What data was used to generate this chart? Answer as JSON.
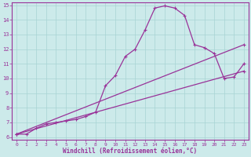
{
  "xlabel": "Windchill (Refroidissement éolien,°C)",
  "xlim": [
    -0.5,
    23.5
  ],
  "ylim": [
    5.8,
    15.2
  ],
  "xticks": [
    0,
    1,
    2,
    3,
    4,
    5,
    6,
    7,
    8,
    9,
    10,
    11,
    12,
    13,
    14,
    15,
    16,
    17,
    18,
    19,
    20,
    21,
    22,
    23
  ],
  "yticks": [
    6,
    7,
    8,
    9,
    10,
    11,
    12,
    13,
    14,
    15
  ],
  "background_color": "#cceaea",
  "grid_color": "#a8d4d4",
  "line_color": "#993399",
  "line1_x": [
    0,
    1,
    2,
    3,
    4,
    5,
    6,
    7,
    8,
    9,
    10,
    11,
    12,
    13,
    14,
    15,
    16,
    17,
    18,
    19,
    20,
    21,
    22,
    23
  ],
  "line1_y": [
    6.2,
    6.2,
    6.6,
    6.9,
    7.0,
    7.1,
    7.2,
    7.4,
    7.7,
    9.5,
    10.2,
    11.5,
    12.0,
    13.3,
    14.8,
    14.95,
    14.8,
    14.3,
    12.3,
    12.1,
    11.7,
    10.0,
    10.1,
    11.0
  ],
  "line3_x": [
    0,
    23
  ],
  "line3_y": [
    6.2,
    12.3
  ],
  "line4_x": [
    0,
    23
  ],
  "line4_y": [
    6.2,
    10.5
  ]
}
